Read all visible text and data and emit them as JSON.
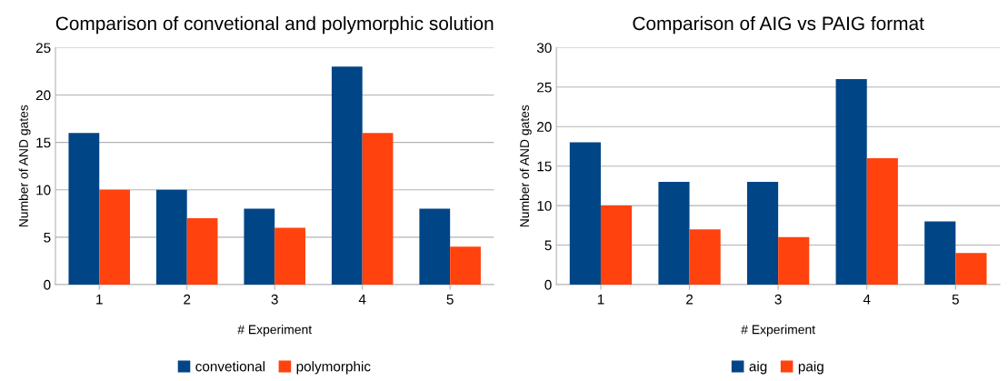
{
  "chart_data": [
    {
      "type": "bar",
      "title": "Comparison of convetional and polymorphic solution",
      "xlabel": "# Experiment",
      "ylabel": "Number of AND gates",
      "categories": [
        "1",
        "2",
        "3",
        "4",
        "5"
      ],
      "series": [
        {
          "name": "convetional",
          "color": "#004586",
          "values": [
            16,
            10,
            8,
            23,
            8
          ]
        },
        {
          "name": "polymorphic",
          "color": "#ff420e",
          "values": [
            10,
            7,
            6,
            16,
            4
          ]
        }
      ],
      "ylim": [
        0,
        25
      ],
      "yticks": [
        0,
        5,
        10,
        15,
        20,
        25
      ],
      "grid": "y",
      "legend": "bottom"
    },
    {
      "type": "bar",
      "title": "Comparison of AIG vs PAIG format",
      "xlabel": "# Experiment",
      "ylabel": "Number of AND gates",
      "categories": [
        "1",
        "2",
        "3",
        "4",
        "5"
      ],
      "series": [
        {
          "name": "aig",
          "color": "#004586",
          "values": [
            18,
            13,
            13,
            26,
            8
          ]
        },
        {
          "name": "paig",
          "color": "#ff420e",
          "values": [
            10,
            7,
            6,
            16,
            4
          ]
        }
      ],
      "ylim": [
        0,
        30
      ],
      "yticks": [
        0,
        5,
        10,
        15,
        20,
        25,
        30
      ],
      "grid": "y",
      "legend": "bottom"
    }
  ]
}
